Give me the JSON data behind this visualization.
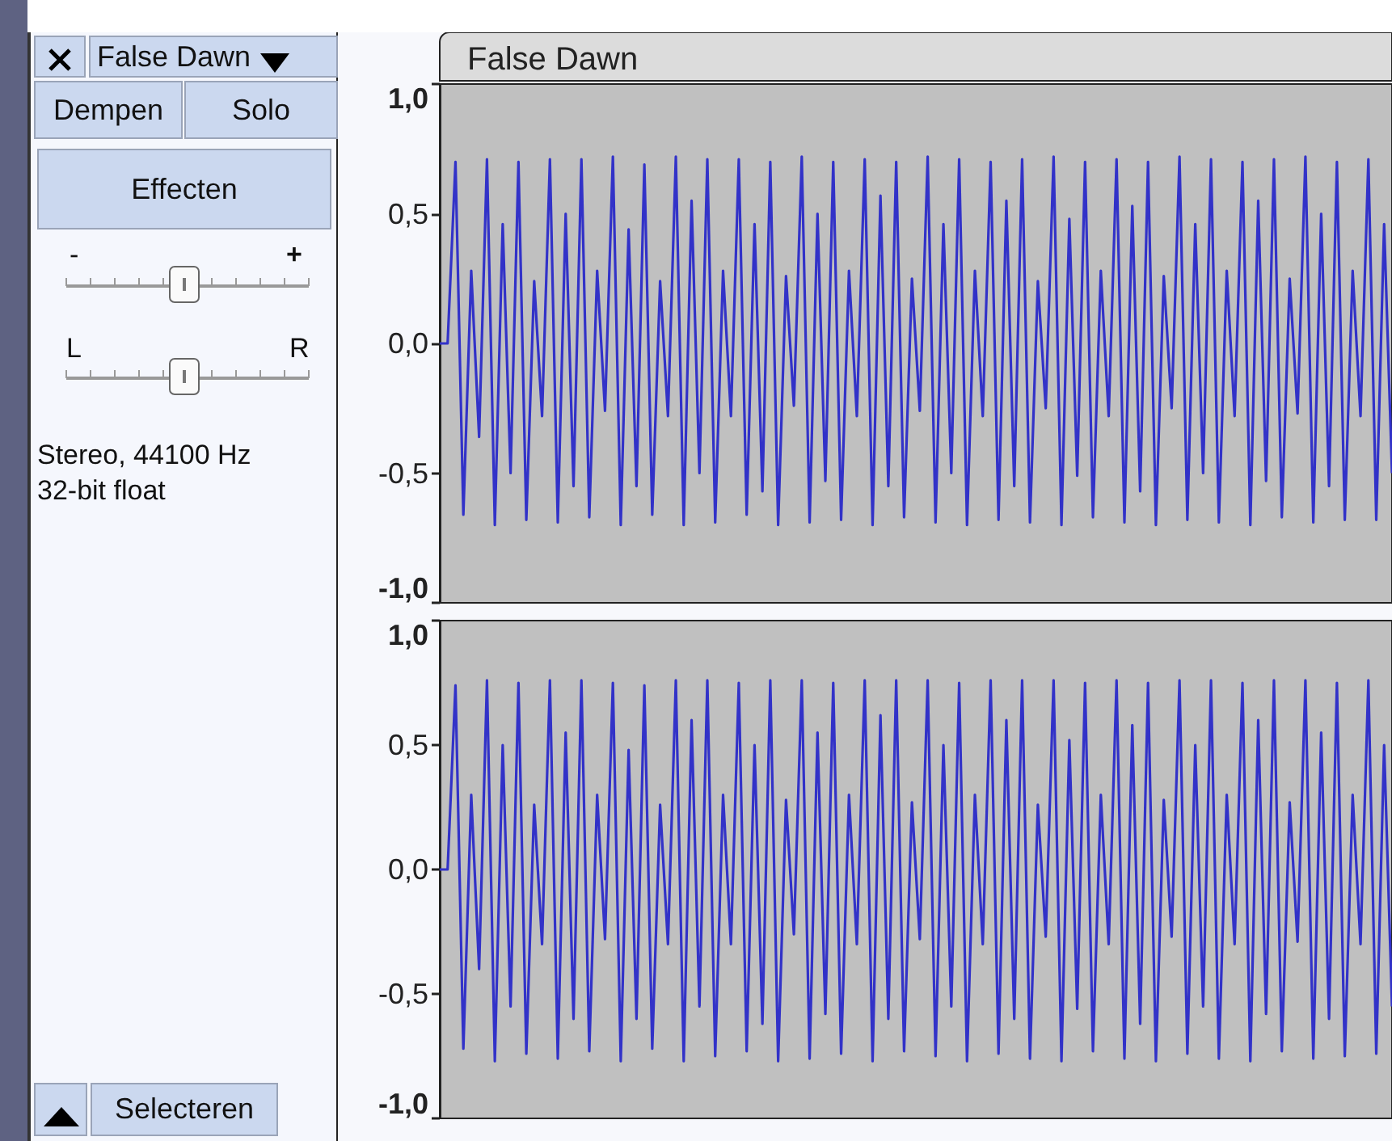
{
  "chart_data": [
    {
      "type": "other",
      "annotations": [
        "False Dawn",
        "Dempen",
        "Solo",
        "Effecten",
        "-",
        "+",
        "L",
        "R",
        "Stereo, 44100 Hz",
        "32-bit float",
        "Selecteren"
      ]
    },
    {
      "type": "line",
      "title": "False Dawn",
      "tick_labels": "y",
      "line_style": "solid",
      "color": "#3232c8",
      "categories": [
        null,
        null,
        null,
        null,
        null,
        null,
        null,
        null,
        null,
        null,
        null,
        null,
        null,
        null,
        null,
        null,
        null,
        null,
        null,
        null,
        null,
        null,
        null,
        null,
        null,
        null,
        null,
        null,
        null,
        null,
        null,
        null,
        null,
        null,
        null,
        null,
        null,
        null,
        null,
        null,
        null,
        null,
        null,
        null,
        null,
        null,
        null,
        null,
        null,
        null,
        null,
        null,
        null,
        null,
        null,
        null,
        null,
        null,
        null,
        null,
        null,
        null,
        null,
        null,
        null,
        null,
        null,
        null,
        null,
        null,
        null,
        null,
        null,
        null,
        null,
        null,
        null,
        null,
        null,
        null,
        null,
        null,
        null,
        null,
        null,
        null,
        null,
        null,
        null,
        null,
        null,
        null,
        null,
        null,
        null,
        null,
        null,
        null,
        null,
        null,
        null,
        null,
        null,
        null,
        null,
        null,
        null,
        null,
        null,
        null,
        null,
        null,
        null,
        null,
        null,
        null,
        null,
        null,
        null,
        null,
        null,
        null
      ],
      "values": [
        0,
        0,
        0.7,
        -0.66,
        0.28,
        -0.36,
        0.71,
        -0.7,
        0.46,
        -0.5,
        0.7,
        -0.68,
        0.24,
        -0.28,
        0.71,
        -0.69,
        0.5,
        -0.55,
        0.71,
        -0.67,
        0.28,
        -0.26,
        0.72,
        -0.7,
        0.44,
        -0.55,
        0.69,
        -0.66,
        0.24,
        -0.28,
        0.72,
        -0.7,
        0.55,
        -0.5,
        0.71,
        -0.69,
        0.28,
        -0.28,
        0.71,
        -0.66,
        0.46,
        -0.57,
        0.7,
        -0.7,
        0.26,
        -0.24,
        0.72,
        -0.69,
        0.5,
        -0.53,
        0.7,
        -0.68,
        0.28,
        -0.28,
        0.71,
        -0.7,
        0.57,
        -0.55,
        0.7,
        -0.67,
        0.25,
        -0.26,
        0.72,
        -0.69,
        0.46,
        -0.5,
        0.71,
        -0.7,
        0.28,
        -0.28,
        0.7,
        -0.68,
        0.55,
        -0.55,
        0.71,
        -0.69,
        0.24,
        -0.25,
        0.72,
        -0.7,
        0.48,
        -0.51,
        0.7,
        -0.67,
        0.28,
        -0.28,
        0.71,
        -0.69,
        0.53,
        -0.57,
        0.7,
        -0.7,
        0.26,
        -0.25,
        0.72,
        -0.68,
        0.46,
        -0.5,
        0.71,
        -0.69,
        0.28,
        -0.28,
        0.7,
        -0.7,
        0.55,
        -0.53,
        0.71,
        -0.67,
        0.25,
        -0.27,
        0.72,
        -0.69,
        0.5,
        -0.55,
        0.7,
        -0.68,
        0.28,
        -0.28,
        0.71,
        -0.68,
        0.46,
        -0.5
      ],
      "ylim": [
        -1,
        1
      ],
      "yticks": [
        {
          "value": -1,
          "label": "-1,0"
        },
        {
          "value": -0.5,
          "label": "-0,5"
        },
        {
          "value": 0,
          "label": "0,0"
        },
        {
          "value": 0.5,
          "label": "0,5"
        },
        {
          "value": 1,
          "label": "1,0"
        }
      ]
    },
    {
      "type": "line",
      "tick_labels": "y",
      "line_style": "solid",
      "color": "#3232c8",
      "categories": [
        null,
        null,
        null,
        null,
        null,
        null,
        null,
        null,
        null,
        null,
        null,
        null,
        null,
        null,
        null,
        null,
        null,
        null,
        null,
        null,
        null,
        null,
        null,
        null,
        null,
        null,
        null,
        null,
        null,
        null,
        null,
        null,
        null,
        null,
        null,
        null,
        null,
        null,
        null,
        null,
        null,
        null,
        null,
        null,
        null,
        null,
        null,
        null,
        null,
        null,
        null,
        null,
        null,
        null,
        null,
        null,
        null,
        null,
        null,
        null,
        null,
        null,
        null,
        null,
        null,
        null,
        null,
        null,
        null,
        null,
        null,
        null,
        null,
        null,
        null,
        null,
        null,
        null,
        null,
        null,
        null,
        null,
        null,
        null,
        null,
        null,
        null,
        null,
        null,
        null,
        null,
        null,
        null,
        null,
        null,
        null,
        null,
        null,
        null,
        null,
        null,
        null,
        null,
        null,
        null,
        null,
        null,
        null,
        null,
        null,
        null,
        null,
        null,
        null,
        null,
        null,
        null,
        null,
        null,
        null,
        null,
        null
      ],
      "values": [
        0,
        0,
        0.74,
        -0.72,
        0.3,
        -0.4,
        0.76,
        -0.77,
        0.5,
        -0.55,
        0.75,
        -0.74,
        0.26,
        -0.3,
        0.76,
        -0.76,
        0.55,
        -0.6,
        0.76,
        -0.73,
        0.3,
        -0.28,
        0.75,
        -0.77,
        0.48,
        -0.6,
        0.74,
        -0.72,
        0.26,
        -0.3,
        0.76,
        -0.77,
        0.6,
        -0.55,
        0.76,
        -0.75,
        0.3,
        -0.3,
        0.75,
        -0.73,
        0.5,
        -0.62,
        0.76,
        -0.77,
        0.28,
        -0.26,
        0.76,
        -0.76,
        0.55,
        -0.58,
        0.75,
        -0.74,
        0.3,
        -0.3,
        0.76,
        -0.77,
        0.62,
        -0.6,
        0.76,
        -0.73,
        0.27,
        -0.28,
        0.76,
        -0.75,
        0.5,
        -0.55,
        0.75,
        -0.77,
        0.3,
        -0.3,
        0.76,
        -0.74,
        0.6,
        -0.6,
        0.76,
        -0.76,
        0.26,
        -0.27,
        0.76,
        -0.77,
        0.52,
        -0.56,
        0.75,
        -0.73,
        0.3,
        -0.3,
        0.76,
        -0.76,
        0.58,
        -0.62,
        0.75,
        -0.77,
        0.28,
        -0.27,
        0.76,
        -0.74,
        0.5,
        -0.55,
        0.76,
        -0.76,
        0.3,
        -0.3,
        0.75,
        -0.77,
        0.6,
        -0.58,
        0.76,
        -0.73,
        0.27,
        -0.29,
        0.76,
        -0.76,
        0.55,
        -0.6,
        0.75,
        -0.75,
        0.3,
        -0.3,
        0.76,
        -0.74,
        0.5,
        -0.55
      ],
      "ylim": [
        -1,
        1
      ],
      "yticks": [
        {
          "value": -1,
          "label": "-1,0"
        },
        {
          "value": -0.5,
          "label": "-0,5"
        },
        {
          "value": 0,
          "label": "0,0"
        },
        {
          "value": 0.5,
          "label": "0,5"
        },
        {
          "value": 1,
          "label": "1,0"
        }
      ]
    }
  ]
}
